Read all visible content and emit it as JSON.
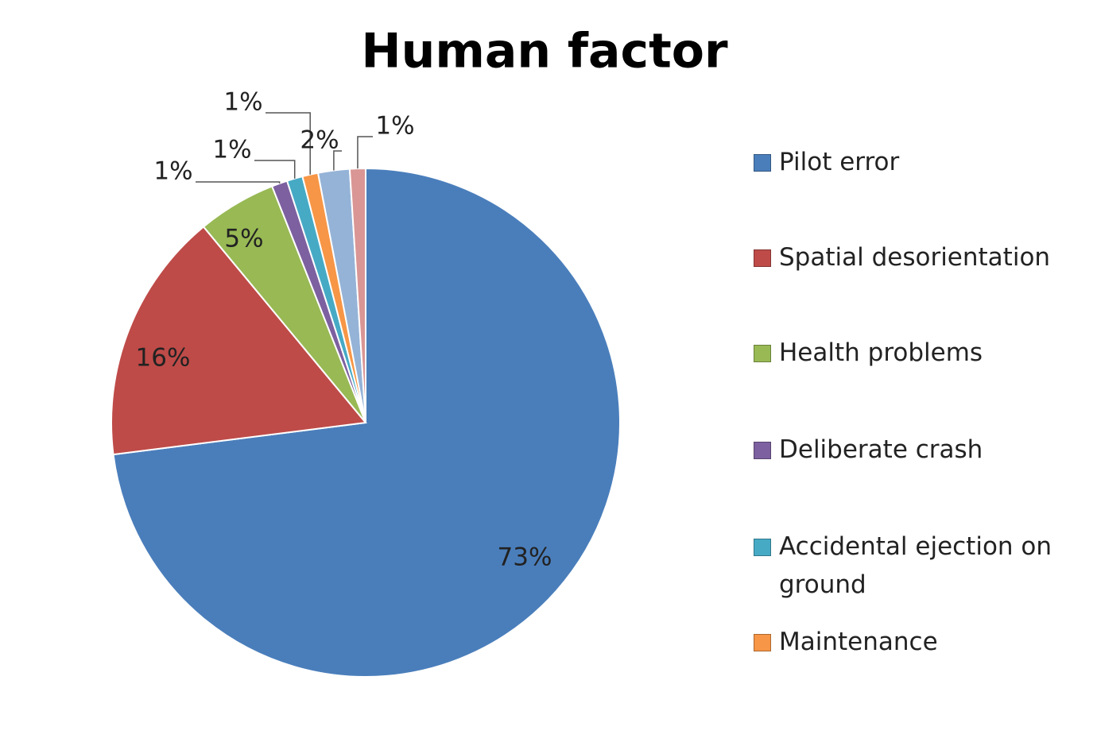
{
  "chart_data": {
    "type": "pie",
    "title": "Human factor",
    "categories": [
      "Pilot error",
      "Spatial desorientation",
      "Health problems",
      "Deliberate crash",
      "Accidental ejection on ground",
      "Maintenance",
      null,
      null
    ],
    "values": [
      73,
      16,
      5,
      1,
      1,
      1,
      2,
      1
    ],
    "value_labels": [
      "73%",
      "16%",
      "5%",
      "1%",
      "1%",
      "1%",
      "2%",
      "1%"
    ],
    "colors": [
      "#4a7ebb",
      "#be4b48",
      "#98b954",
      "#7d60a0",
      "#46aac5",
      "#f79646",
      "#95b3d7",
      "#d99694"
    ],
    "legend": "right"
  }
}
